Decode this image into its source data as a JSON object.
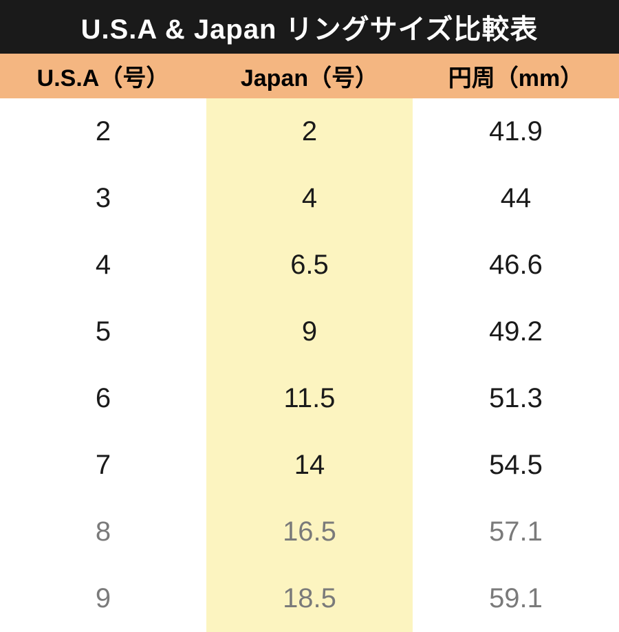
{
  "title": "U.S.A & Japan リングサイズ比較表",
  "table": {
    "columns": [
      "U.S.A（号）",
      "Japan（号）",
      "円周（mm）"
    ],
    "rows": [
      {
        "usa": "2",
        "japan": "2",
        "circ": "41.9",
        "faded": false
      },
      {
        "usa": "3",
        "japan": "4",
        "circ": "44",
        "faded": false
      },
      {
        "usa": "4",
        "japan": "6.5",
        "circ": "46.6",
        "faded": false
      },
      {
        "usa": "5",
        "japan": "9",
        "circ": "49.2",
        "faded": false
      },
      {
        "usa": "6",
        "japan": "11.5",
        "circ": "51.3",
        "faded": false
      },
      {
        "usa": "7",
        "japan": "14",
        "circ": "54.5",
        "faded": false
      },
      {
        "usa": "8",
        "japan": "16.5",
        "circ": "57.1",
        "faded": true
      },
      {
        "usa": "9",
        "japan": "18.5",
        "circ": "59.1",
        "faded": true
      }
    ],
    "styling": {
      "title_bg": "#1a1a1a",
      "title_color": "#ffffff",
      "title_fontsize": 40,
      "title_fontweight": "bold",
      "header_bg": "#f4b681",
      "header_fontsize": 34,
      "header_fontweight": "bold",
      "header_color": "#000000",
      "highlight_column_index": 1,
      "highlight_column_bg": "#fcf4c0",
      "cell_fontsize": 40,
      "cell_color": "#1a1a1a",
      "cell_faded_color": "#7a7a7a",
      "row_padding_v": 26,
      "background_color": "#ffffff",
      "column_widths": [
        "33.33%",
        "33.33%",
        "33.33%"
      ],
      "text_align": "center"
    }
  }
}
